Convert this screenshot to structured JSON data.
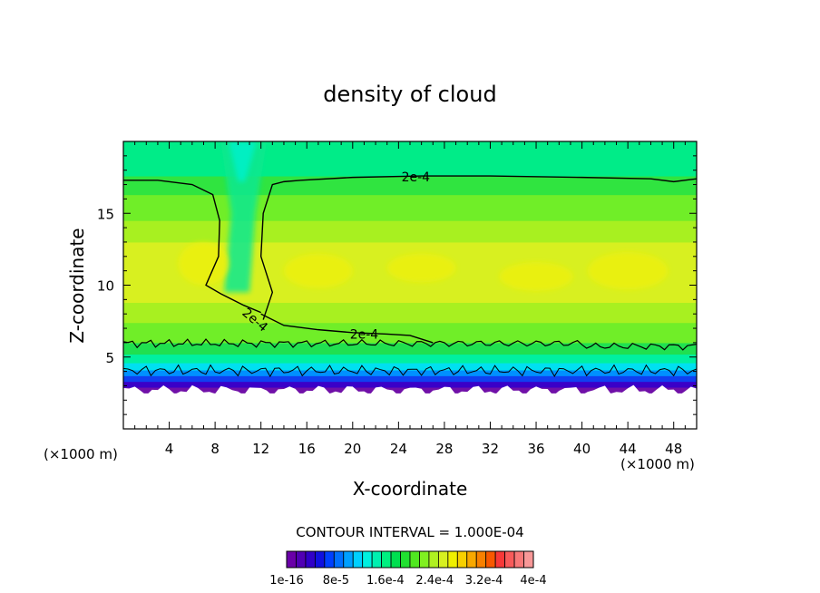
{
  "chart_data": {
    "type": "heatmap",
    "title": "density of cloud",
    "xlabel": "X-coordinate",
    "ylabel": "Z-coordinate",
    "x_unit_left": "(×1000 m)",
    "x_unit_right": "(×1000 m)",
    "xlim": [
      0,
      50
    ],
    "ylim": [
      0,
      20
    ],
    "x_ticks": [
      4,
      8,
      12,
      16,
      20,
      24,
      28,
      32,
      36,
      40,
      44,
      48
    ],
    "y_ticks": [
      5,
      10,
      15
    ],
    "contour_interval_text": "CONTOUR INTERVAL = 1.000E-04",
    "contour_label": "2e-4",
    "contour_level": 0.0002,
    "colorbar": {
      "tick_labels": [
        "1e-16",
        "8e-5",
        "1.6e-4",
        "2.4e-4",
        "3.2e-4",
        "4e-4"
      ],
      "range": [
        0,
        0.0004
      ],
      "colors": [
        "#6a00a8",
        "#5000b4",
        "#3000c8",
        "#1010e0",
        "#0040ff",
        "#0070ff",
        "#00a0ff",
        "#00d0ff",
        "#00f0e0",
        "#00f0b0",
        "#00f080",
        "#00e050",
        "#20e030",
        "#50e820",
        "#80f020",
        "#b0f020",
        "#d8f020",
        "#f0f000",
        "#f8d000",
        "#f8a800",
        "#f88000",
        "#f85800",
        "#f83838",
        "#f85a5a",
        "#f87878",
        "#f89898"
      ]
    }
  }
}
